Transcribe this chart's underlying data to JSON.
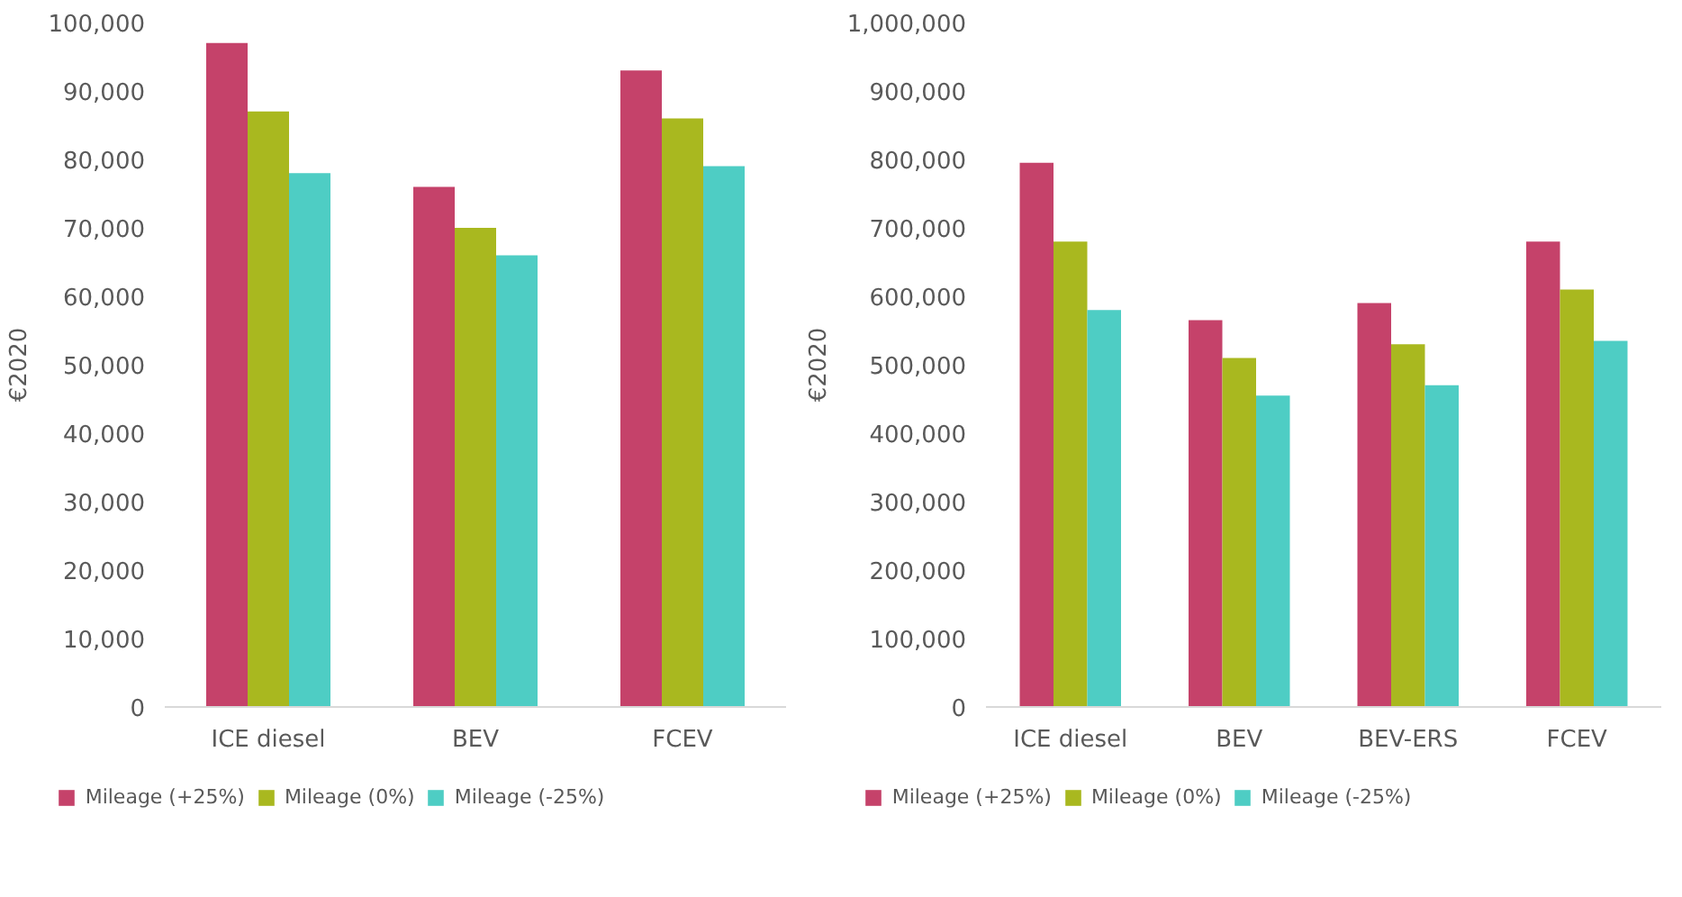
{
  "chart_data": [
    {
      "type": "bar",
      "ylabel": "€2020",
      "categories": [
        "ICE diesel",
        "BEV",
        "FCEV"
      ],
      "ylim": [
        0,
        100000
      ],
      "yticks": [
        {
          "value": 0,
          "label": "0"
        },
        {
          "value": 10000,
          "label": "10,000"
        },
        {
          "value": 20000,
          "label": "20,000"
        },
        {
          "value": 30000,
          "label": "30,000"
        },
        {
          "value": 40000,
          "label": "40,000"
        },
        {
          "value": 50000,
          "label": "50,000"
        },
        {
          "value": 60000,
          "label": "60,000"
        },
        {
          "value": 70000,
          "label": "70,000"
        },
        {
          "value": 80000,
          "label": "80,000"
        },
        {
          "value": 90000,
          "label": "90,000"
        },
        {
          "value": 100000,
          "label": "100,000"
        }
      ],
      "grid": false,
      "legend": "bottom",
      "series": [
        {
          "name": "Mileage (+25%)",
          "color": "#c5426a",
          "values": [
            97000,
            76000,
            93000
          ]
        },
        {
          "name": "Mileage (0%)",
          "color": "#a9b81f",
          "values": [
            87000,
            70000,
            86000
          ]
        },
        {
          "name": "Mileage (-25%)",
          "color": "#4ecdc4",
          "values": [
            78000,
            66000,
            79000
          ]
        }
      ]
    },
    {
      "type": "bar",
      "ylabel": "€2020",
      "categories": [
        "ICE diesel",
        "BEV",
        "BEV-ERS",
        "FCEV"
      ],
      "ylim": [
        0,
        1000000
      ],
      "yticks": [
        {
          "value": 0,
          "label": "0"
        },
        {
          "value": 100000,
          "label": "100,000"
        },
        {
          "value": 200000,
          "label": "200,000"
        },
        {
          "value": 300000,
          "label": "300,000"
        },
        {
          "value": 400000,
          "label": "400,000"
        },
        {
          "value": 500000,
          "label": "500,000"
        },
        {
          "value": 600000,
          "label": "600,000"
        },
        {
          "value": 700000,
          "label": "700,000"
        },
        {
          "value": 800000,
          "label": "800,000"
        },
        {
          "value": 900000,
          "label": "900,000"
        },
        {
          "value": 1000000,
          "label": "1,000,000"
        }
      ],
      "grid": false,
      "legend": "bottom",
      "series": [
        {
          "name": "Mileage (+25%)",
          "color": "#c5426a",
          "values": [
            795000,
            565000,
            590000,
            680000
          ]
        },
        {
          "name": "Mileage (0%)",
          "color": "#a9b81f",
          "values": [
            680000,
            510000,
            530000,
            610000
          ]
        },
        {
          "name": "Mileage (-25%)",
          "color": "#4ecdc4",
          "values": [
            580000,
            455000,
            470000,
            535000
          ]
        }
      ]
    }
  ]
}
